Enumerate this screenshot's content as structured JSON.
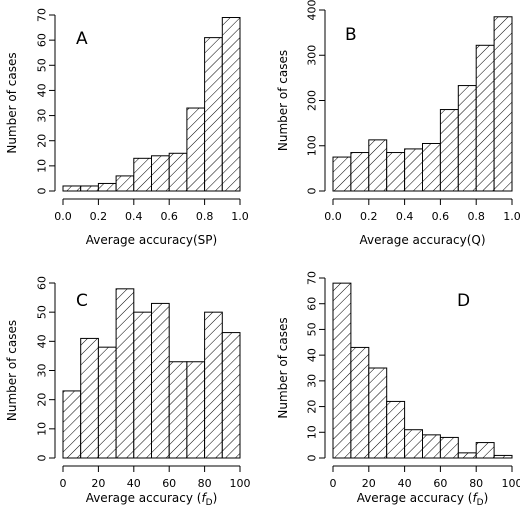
{
  "figure": {
    "panels": [
      {
        "letter": "A",
        "xlabel_main": "Average accuracy(SP)",
        "xlabel_italic": "",
        "xlabel_sub": "",
        "xlabel_close": "",
        "ylabel": "Number of cases"
      },
      {
        "letter": "B",
        "xlabel_main": "Average accuracy(Q)",
        "xlabel_italic": "",
        "xlabel_sub": "",
        "xlabel_close": "",
        "ylabel": "Number of cases"
      },
      {
        "letter": "C",
        "xlabel_main": "Average accuracy (",
        "xlabel_italic": "f",
        "xlabel_sub": "D",
        "xlabel_close": ")",
        "ylabel": "Number of cases"
      },
      {
        "letter": "D",
        "xlabel_main": "Average accuracy (",
        "xlabel_italic": "f",
        "xlabel_sub": "D",
        "xlabel_close": ")",
        "ylabel": "Number of cases"
      }
    ]
  },
  "chart_data": [
    {
      "type": "bar",
      "panel": "A",
      "xlabel": "Average accuracy(SP)",
      "ylabel": "Number of cases",
      "bin_edges": [
        0.0,
        0.1,
        0.2,
        0.3,
        0.4,
        0.5,
        0.6,
        0.7,
        0.8,
        0.9,
        1.0
      ],
      "values": [
        2,
        2,
        3,
        6,
        13,
        14,
        15,
        33,
        61,
        69
      ],
      "xlim": [
        0,
        1
      ],
      "ylim": [
        0,
        70
      ],
      "xticks": [
        0.0,
        0.2,
        0.4,
        0.6,
        0.8,
        1.0
      ],
      "xtick_labels": [
        "0.0",
        "0.2",
        "0.4",
        "0.6",
        "0.8",
        "1.0"
      ],
      "yticks": [
        0,
        10,
        20,
        30,
        40,
        50,
        60,
        70
      ],
      "ytick_labels": [
        "0",
        "10",
        "20",
        "30",
        "40",
        "50",
        "60",
        "70"
      ],
      "fill": "hatched",
      "grid": false
    },
    {
      "type": "bar",
      "panel": "B",
      "xlabel": "Average accuracy(Q)",
      "ylabel": "Number of cases",
      "bin_edges": [
        0.0,
        0.1,
        0.2,
        0.3,
        0.4,
        0.5,
        0.6,
        0.7,
        0.8,
        0.9,
        1.0
      ],
      "values": [
        75,
        85,
        113,
        85,
        93,
        105,
        180,
        233,
        322,
        385
      ],
      "xlim": [
        0,
        1
      ],
      "ylim": [
        0,
        400
      ],
      "xticks": [
        0.0,
        0.2,
        0.4,
        0.6,
        0.8,
        1.0
      ],
      "xtick_labels": [
        "0.0",
        "0.2",
        "0.4",
        "0.6",
        "0.8",
        "1.0"
      ],
      "yticks": [
        0,
        100,
        200,
        300,
        400
      ],
      "ytick_labels": [
        "0",
        "100",
        "200",
        "300",
        "400"
      ],
      "fill": "hatched",
      "grid": false
    },
    {
      "type": "bar",
      "panel": "C",
      "xlabel": "Average accuracy (fD)",
      "ylabel": "Number of cases",
      "bin_edges": [
        0,
        10,
        20,
        30,
        40,
        50,
        60,
        70,
        80,
        90,
        100
      ],
      "values": [
        23,
        41,
        38,
        58,
        50,
        53,
        33,
        33,
        50,
        43
      ],
      "xlim": [
        0,
        100
      ],
      "ylim": [
        0,
        60
      ],
      "xticks": [
        0,
        20,
        40,
        60,
        80,
        100
      ],
      "xtick_labels": [
        "0",
        "20",
        "40",
        "60",
        "80",
        "100"
      ],
      "yticks": [
        0,
        10,
        20,
        30,
        40,
        50,
        60
      ],
      "ytick_labels": [
        "0",
        "10",
        "20",
        "30",
        "40",
        "50",
        "60"
      ],
      "fill": "hatched",
      "grid": false
    },
    {
      "type": "bar",
      "panel": "D",
      "xlabel": "Average accuracy (fD)",
      "ylabel": "Number of cases",
      "bin_edges": [
        0,
        10,
        20,
        30,
        40,
        50,
        60,
        70,
        80,
        90,
        100
      ],
      "values": [
        68,
        43,
        35,
        22,
        11,
        9,
        8,
        2,
        6,
        1
      ],
      "xlim": [
        0,
        100
      ],
      "ylim": [
        0,
        70
      ],
      "xticks": [
        0,
        20,
        40,
        60,
        80,
        100
      ],
      "xtick_labels": [
        "0",
        "20",
        "40",
        "60",
        "80",
        "100"
      ],
      "yticks": [
        0,
        10,
        20,
        30,
        40,
        50,
        60,
        70
      ],
      "ytick_labels": [
        "0",
        "10",
        "20",
        "30",
        "40",
        "50",
        "60",
        "70"
      ],
      "fill": "hatched",
      "grid": false
    }
  ]
}
